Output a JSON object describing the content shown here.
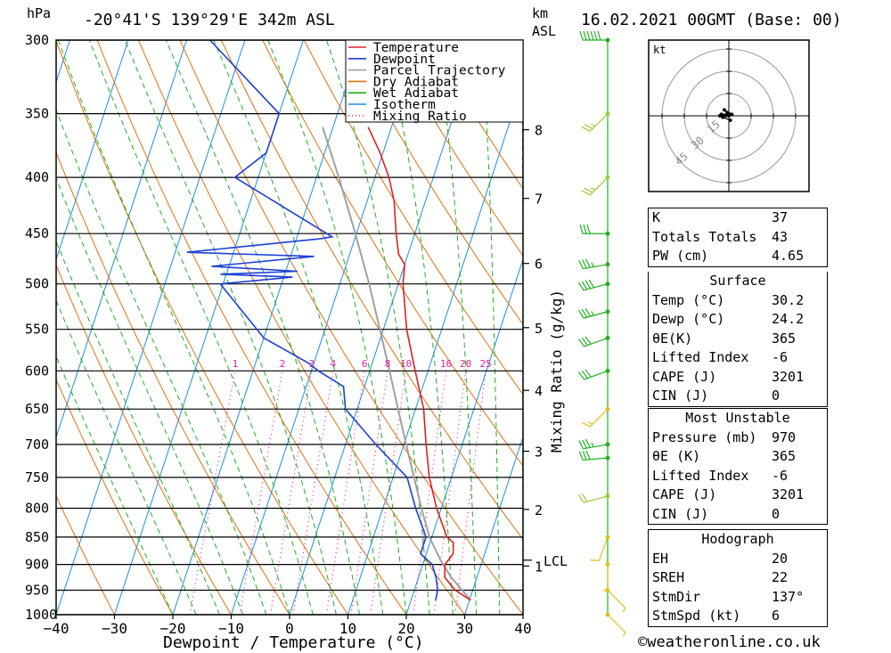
{
  "header": {
    "location": "-20°41'S 139°29'E 342m ASL",
    "hpa_label": "hPa",
    "km_label": "km",
    "asl_label": "ASL",
    "date": "16.02.2021 00GMT (Base: 00)"
  },
  "chart_data": {
    "type": "skew-t",
    "xlabel": "Dewpoint / Temperature (°C)",
    "ylabel_right": "Mixing Ratio (g/kg)",
    "xlim": [
      -40,
      40
    ],
    "ylim_hpa": [
      1000,
      300
    ],
    "x_ticks": [
      -40,
      -30,
      -20,
      -10,
      0,
      10,
      20,
      30,
      40
    ],
    "pressure_levels": [
      300,
      350,
      400,
      450,
      500,
      550,
      600,
      650,
      700,
      750,
      800,
      850,
      900,
      950,
      1000
    ],
    "km_ticks": [
      {
        "km": 1,
        "p": 903
      },
      {
        "km": 2,
        "p": 802
      },
      {
        "km": 3,
        "p": 710
      },
      {
        "km": 4,
        "p": 625
      },
      {
        "km": 5,
        "p": 548
      },
      {
        "km": 6,
        "p": 479
      },
      {
        "km": 7,
        "p": 418
      },
      {
        "km": 8,
        "p": 362
      }
    ],
    "lcl": {
      "label": "LCL",
      "p": 892
    },
    "mixing_ratio_labels": [
      "1",
      "2",
      "3",
      "4",
      "6",
      "8",
      "10",
      "16",
      "20",
      "25"
    ],
    "legend": [
      {
        "name": "Temperature",
        "color": "#e02020",
        "style": "solid"
      },
      {
        "name": "Dewpoint",
        "color": "#1c3fd6",
        "style": "solid"
      },
      {
        "name": "Parcel Trajectory",
        "color": "#a0a0a0",
        "style": "solid"
      },
      {
        "name": "Dry Adiabat",
        "color": "#e07010",
        "style": "solid"
      },
      {
        "name": "Wet Adiabat",
        "color": "#20b020",
        "style": "solid"
      },
      {
        "name": "Isotherm",
        "color": "#1890e0",
        "style": "solid"
      },
      {
        "name": "Mixing Ratio",
        "color": "#e020a0",
        "style": "dotted"
      }
    ],
    "temperature": [
      [
        970,
        30.2
      ],
      [
        950,
        27.0
      ],
      [
        925,
        24.5
      ],
      [
        900,
        23.8
      ],
      [
        880,
        24.6
      ],
      [
        860,
        24.0
      ],
      [
        850,
        22.6
      ],
      [
        800,
        19.2
      ],
      [
        750,
        16.2
      ],
      [
        700,
        13.8
      ],
      [
        650,
        11.4
      ],
      [
        600,
        7.8
      ],
      [
        550,
        4.0
      ],
      [
        500,
        0.8
      ],
      [
        480,
        0.0
      ],
      [
        470,
        -1.6
      ],
      [
        450,
        -3.2
      ],
      [
        420,
        -5.4
      ],
      [
        400,
        -7.6
      ],
      [
        380,
        -10.5
      ],
      [
        360,
        -14.0
      ]
    ],
    "dewpoint": [
      [
        970,
        24.2
      ],
      [
        950,
        24.0
      ],
      [
        925,
        23.0
      ],
      [
        900,
        21.6
      ],
      [
        880,
        19.0
      ],
      [
        850,
        19.0
      ],
      [
        800,
        15.6
      ],
      [
        750,
        12.4
      ],
      [
        700,
        5.2
      ],
      [
        650,
        -2.0
      ],
      [
        620,
        -3.6
      ],
      [
        600,
        -8.8
      ],
      [
        590,
        -11.0
      ],
      [
        560,
        -20.0
      ],
      [
        500,
        -30.5
      ],
      [
        493,
        -18.5
      ],
      [
        490,
        -31.0
      ],
      [
        487,
        -18.0
      ],
      [
        482,
        -33.0
      ],
      [
        472,
        -16.0
      ],
      [
        468,
        -38.0
      ],
      [
        455,
        -16.0
      ],
      [
        453,
        -14.0
      ],
      [
        400,
        -34.0
      ],
      [
        380,
        -30.0
      ],
      [
        350,
        -30.0
      ],
      [
        300,
        -46.0
      ]
    ],
    "parcel": [
      [
        970,
        30.2
      ],
      [
        950,
        28.2
      ],
      [
        925,
        25.6
      ],
      [
        892,
        22.8
      ],
      [
        850,
        19.6
      ],
      [
        800,
        16.6
      ],
      [
        750,
        13.6
      ],
      [
        700,
        10.4
      ],
      [
        650,
        7.0
      ],
      [
        600,
        3.4
      ],
      [
        550,
        -0.6
      ],
      [
        500,
        -5.0
      ],
      [
        450,
        -10.2
      ],
      [
        400,
        -16.2
      ],
      [
        360,
        -21.8
      ]
    ],
    "wind_barbs": [
      {
        "p": 300,
        "dir": 270,
        "kt": 60
      },
      {
        "p": 350,
        "dir": 225,
        "kt": 25
      },
      {
        "p": 400,
        "dir": 225,
        "kt": 25
      },
      {
        "p": 450,
        "dir": 270,
        "kt": 30
      },
      {
        "p": 480,
        "dir": 260,
        "kt": 35
      },
      {
        "p": 500,
        "dir": 255,
        "kt": 40
      },
      {
        "p": 530,
        "dir": 255,
        "kt": 35
      },
      {
        "p": 560,
        "dir": 250,
        "kt": 30
      },
      {
        "p": 600,
        "dir": 250,
        "kt": 30
      },
      {
        "p": 650,
        "dir": 225,
        "kt": 15
      },
      {
        "p": 700,
        "dir": 260,
        "kt": 35
      },
      {
        "p": 720,
        "dir": 265,
        "kt": 30
      },
      {
        "p": 780,
        "dir": 255,
        "kt": 20
      },
      {
        "p": 850,
        "dir": 200,
        "kt": 10
      },
      {
        "p": 900,
        "dir": 180,
        "kt": 5
      },
      {
        "p": 950,
        "dir": 135,
        "kt": 5
      },
      {
        "p": 1000,
        "dir": 135,
        "kt": 5
      }
    ],
    "hodograph": {
      "unit": "kt",
      "ring_labels": [
        "15",
        "30",
        "45"
      ],
      "points_uv": [
        [
          -1,
          2
        ],
        [
          -3,
          4
        ],
        [
          2,
          1
        ],
        [
          -5,
          1
        ],
        [
          0,
          0
        ],
        [
          -4,
          -1
        ],
        [
          -6,
          0
        ],
        [
          1,
          -3
        ]
      ]
    }
  },
  "indices": [
    {
      "label": "K",
      "value": "37"
    },
    {
      "label": "Totals Totals",
      "value": "43"
    },
    {
      "label": "PW (cm)",
      "value": "4.65"
    }
  ],
  "surface": {
    "title": "Surface",
    "rows": [
      {
        "label": "Temp (°C)",
        "value": "30.2"
      },
      {
        "label": "Dewp (°C)",
        "value": "24.2"
      },
      {
        "label": "θE(K)",
        "value": "365"
      },
      {
        "label": "Lifted Index",
        "value": "-6"
      },
      {
        "label": "CAPE (J)",
        "value": "3201"
      },
      {
        "label": "CIN (J)",
        "value": "0"
      }
    ]
  },
  "most_unstable": {
    "title": "Most Unstable",
    "rows": [
      {
        "label": "Pressure (mb)",
        "value": "970"
      },
      {
        "label": "θE (K)",
        "value": "365"
      },
      {
        "label": "Lifted Index",
        "value": "-6"
      },
      {
        "label": "CAPE (J)",
        "value": "3201"
      },
      {
        "label": "CIN (J)",
        "value": "0"
      }
    ]
  },
  "hodograph_table": {
    "title": "Hodograph",
    "rows": [
      {
        "label": "EH",
        "value": "20"
      },
      {
        "label": "SREH",
        "value": "22"
      },
      {
        "label": "StmDir",
        "value": "137°"
      },
      {
        "label": "StmSpd (kt)",
        "value": "6"
      }
    ]
  },
  "copyright": "©weatheronline.co.uk"
}
